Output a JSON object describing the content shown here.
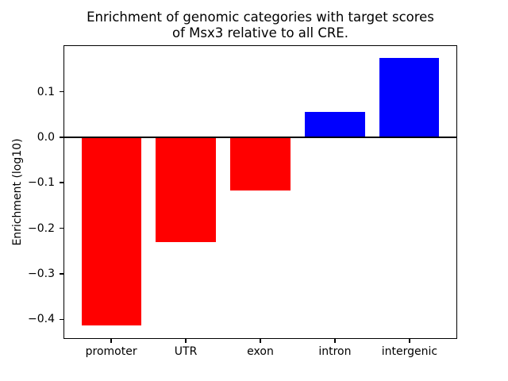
{
  "figure": {
    "background": "#ffffff"
  },
  "chart_data": {
    "type": "bar",
    "title": "Enrichment of genomic categories with target scores\nof Msx3 relative to all CRE.",
    "ylabel": "Enrichment (log10)",
    "xlabel": "",
    "categories": [
      "promoter",
      "UTR",
      "exon",
      "intron",
      "intergenic"
    ],
    "values": [
      -0.414,
      -0.23,
      -0.117,
      0.056,
      0.174
    ],
    "colors": [
      "#ff0000",
      "#ff0000",
      "#ff0000",
      "#0000ff",
      "#0000ff"
    ],
    "negative_color": "#ff0000",
    "positive_color": "#0000ff",
    "bar_width_fraction": 0.8,
    "baseline": 0.0,
    "yticks": [
      0.1,
      0.0,
      -0.1,
      -0.2,
      -0.3,
      -0.4
    ],
    "ytick_labels": [
      "0.1",
      "0.0",
      "−0.1",
      "−0.2",
      "−0.3",
      "−0.4"
    ],
    "ylim": [
      -0.443,
      0.202
    ],
    "xlim": [
      -0.64,
      4.64
    ],
    "grid": false,
    "legend_visible": false,
    "frame_color": "#000000",
    "zero_line_color": "#000000"
  }
}
